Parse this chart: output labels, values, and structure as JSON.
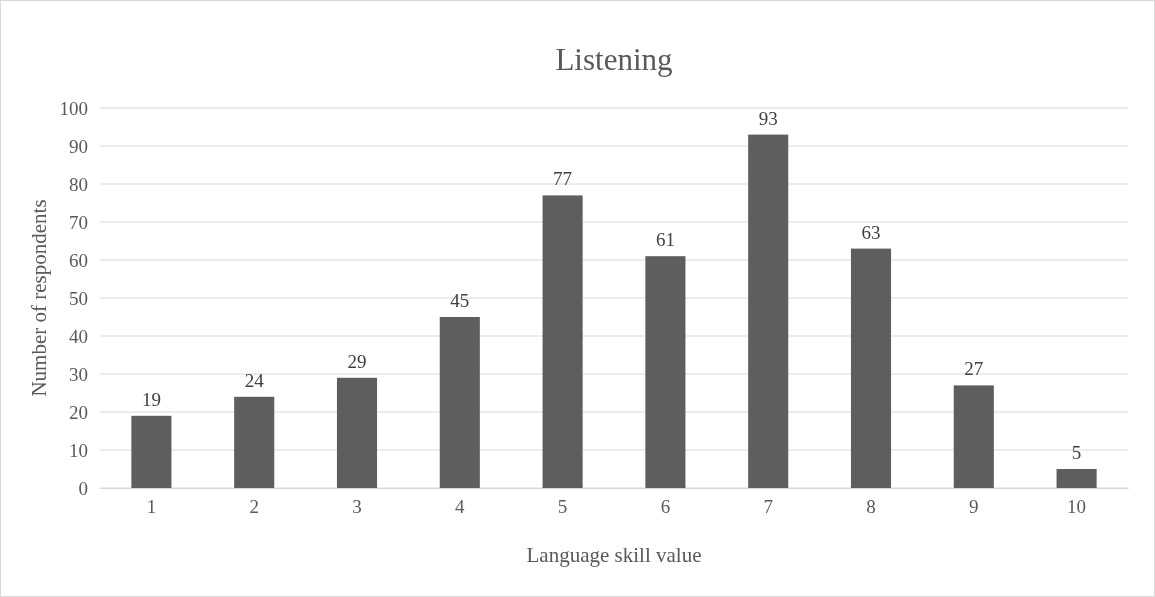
{
  "chart_data": {
    "type": "bar",
    "title": "Listening",
    "xlabel": "Language skill value",
    "ylabel": "Number of respondents",
    "categories": [
      "1",
      "2",
      "3",
      "4",
      "5",
      "6",
      "7",
      "8",
      "9",
      "10"
    ],
    "values": [
      19,
      24,
      29,
      45,
      77,
      61,
      93,
      63,
      27,
      5
    ],
    "color": "#5e5e5e",
    "ylim": [
      0,
      100
    ],
    "yticks": [
      0,
      10,
      20,
      30,
      40,
      50,
      60,
      70,
      80,
      90,
      100
    ],
    "grid": "y",
    "data_labels": true
  }
}
